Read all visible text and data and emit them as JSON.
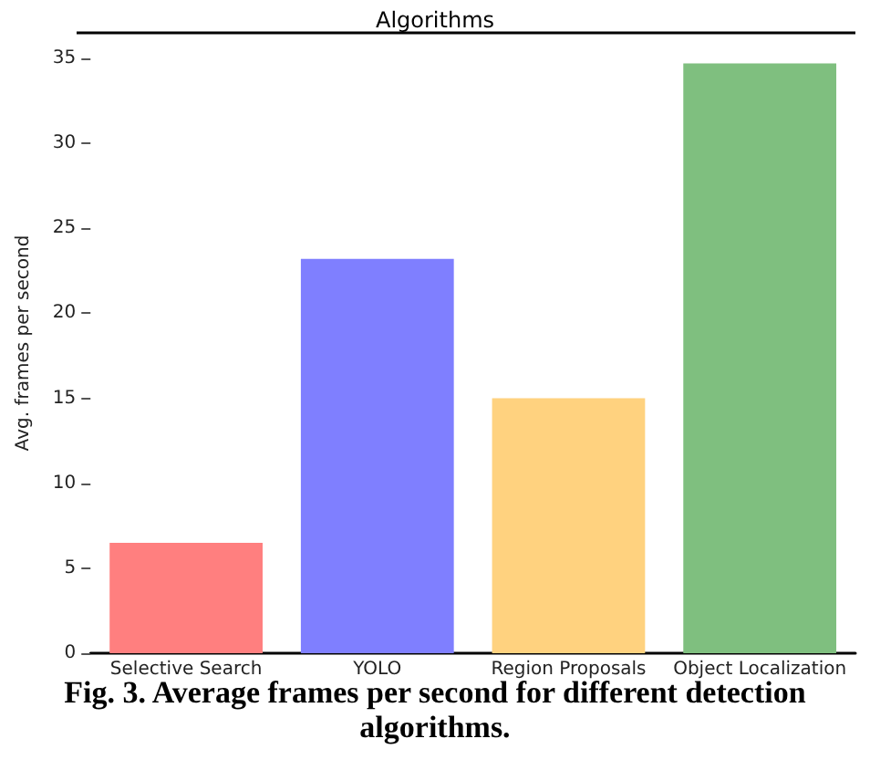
{
  "chart_data": {
    "type": "bar",
    "title": "Algorithms",
    "ylabel": "Avg. frames per second",
    "categories": [
      "Selective Search",
      "YOLO",
      "Region Proposals",
      "Object Localization"
    ],
    "values": [
      6.5,
      23.2,
      15.0,
      34.7
    ],
    "colors": [
      "#ff7f7f",
      "#7f7fff",
      "#ffd27f",
      "#7fbf7f"
    ],
    "ylim": [
      0,
      36.5
    ],
    "yticks": [
      0,
      5,
      10,
      15,
      20,
      25,
      30,
      35
    ],
    "grid": false,
    "annotations": [
      "Fig. 3. Average frames per second for different detection algorithms."
    ]
  }
}
